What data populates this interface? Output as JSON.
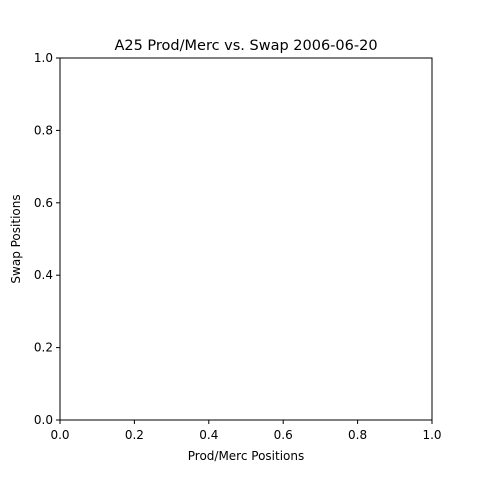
{
  "chart_data": {
    "type": "scatter",
    "title": "A25 Prod/Merc vs. Swap 2006-06-20",
    "xlabel": "Prod/Merc Positions",
    "ylabel": "Swap Positions",
    "xlim": [
      0,
      1
    ],
    "ylim": [
      0,
      1
    ],
    "xticks": [
      "0.0",
      "0.2",
      "0.4",
      "0.6",
      "0.8",
      "1.0"
    ],
    "yticks": [
      "0.0",
      "0.2",
      "0.4",
      "0.6",
      "0.8",
      "1.0"
    ],
    "grid": false,
    "series": [
      {
        "x": [],
        "y": []
      }
    ],
    "colors": {
      "axes": "#000000",
      "background": "#ffffff"
    }
  }
}
